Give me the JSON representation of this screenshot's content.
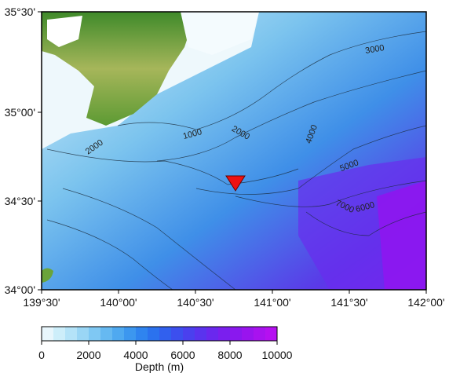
{
  "map": {
    "lon_ticks": [
      "139°30'",
      "140°00'",
      "140°30'",
      "141°00'",
      "141°30'",
      "142°00'"
    ],
    "lat_ticks": [
      "35°30'",
      "35°00'",
      "34°30'",
      "34°00'"
    ],
    "contour_labels": [
      "2000",
      "1000",
      "2000",
      "3000",
      "4000",
      "5000",
      "6000",
      "7000"
    ]
  },
  "colorbar": {
    "range": [
      0,
      10000
    ],
    "ticks": [
      0,
      2000,
      4000,
      6000,
      8000,
      10000
    ],
    "label": "Depth (m)",
    "colors": [
      "#e8f6fc",
      "#cdeefa",
      "#b4e3f8",
      "#9ad6f5",
      "#7fc8f3",
      "#66b9f1",
      "#4fa9f0",
      "#3c97ef",
      "#2f84ef",
      "#2b72ee",
      "#3160ee",
      "#3c4fee",
      "#4a40ee",
      "#5a33ee",
      "#6a28ee",
      "#7a1fee",
      "#8a18ee",
      "#9914ee",
      "#a812ef",
      "#b510f0"
    ]
  }
}
